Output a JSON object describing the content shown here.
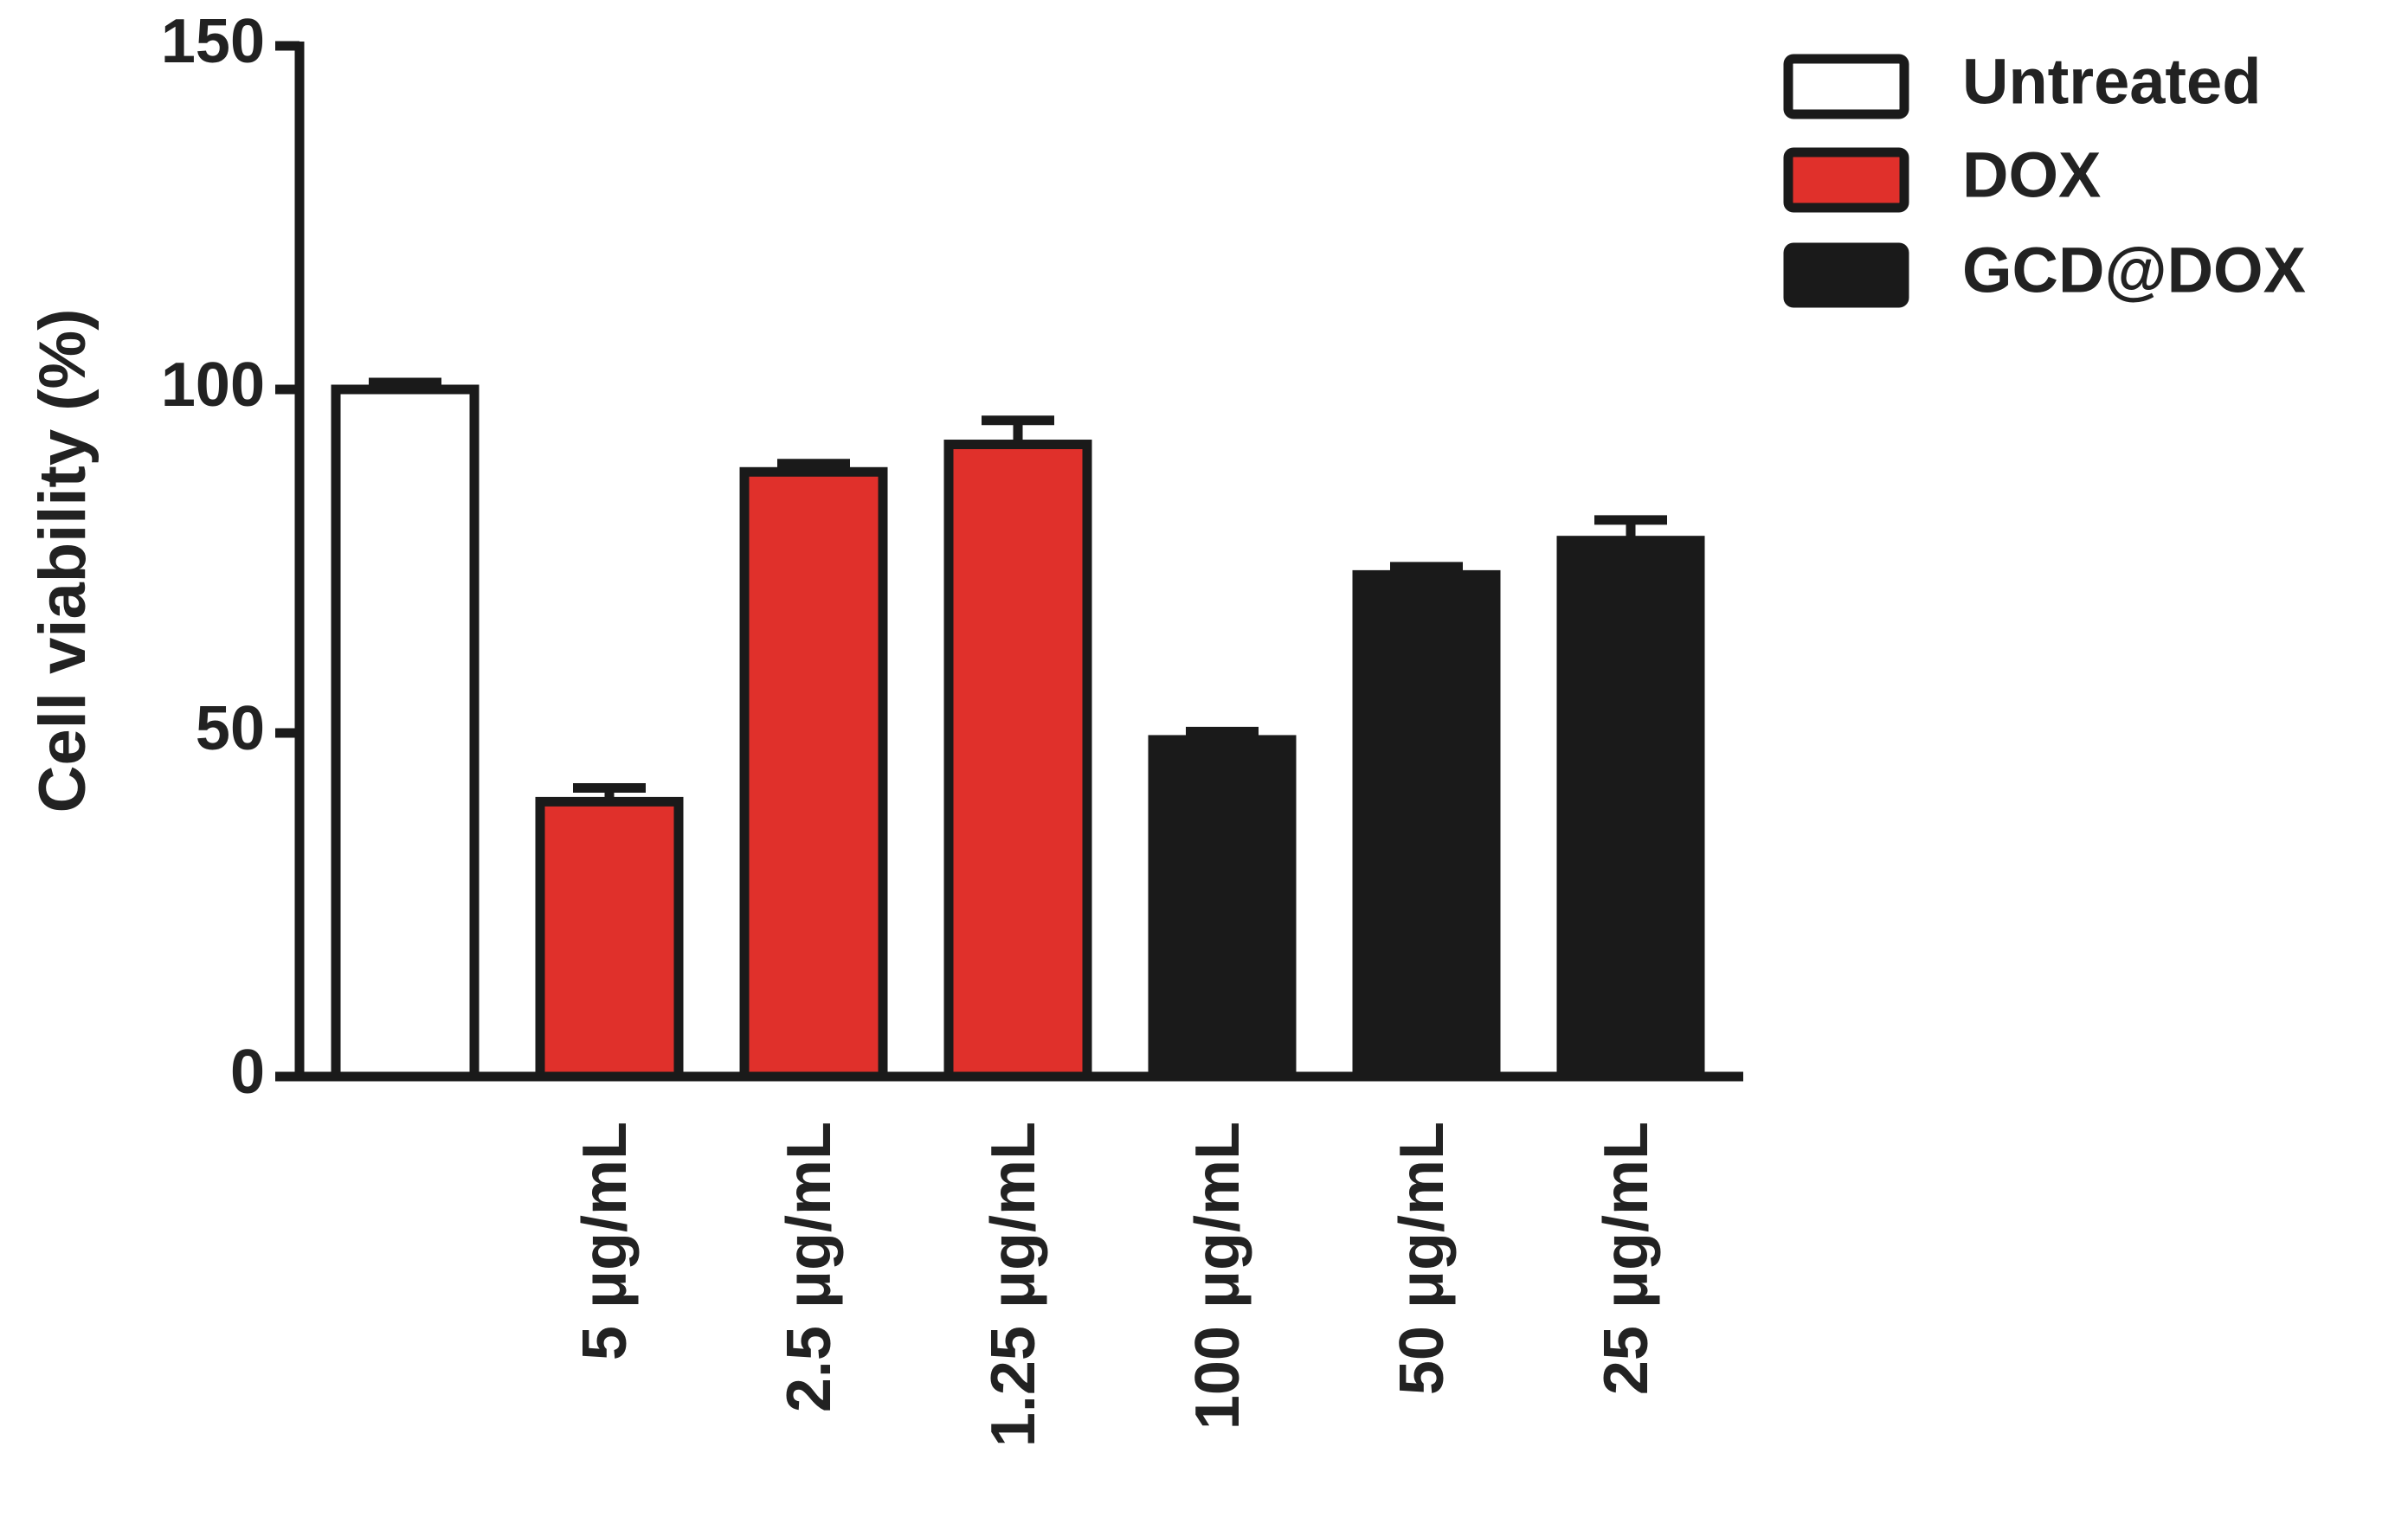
{
  "chart_data": {
    "type": "bar",
    "y_label": "Cell viability (%)",
    "categories": [
      null,
      "5 μg/mL",
      "2.5 μg/mL",
      "1.25 μg/mL",
      "100 μg/mL",
      "50 μg/mL",
      "25 μg/mL"
    ],
    "series": [
      {
        "name": "Untreated",
        "color": "#ffffff",
        "values": [
          100,
          null,
          null,
          null,
          null,
          null,
          null
        ],
        "errors": [
          1,
          null,
          null,
          null,
          null,
          null,
          null
        ]
      },
      {
        "name": "DOX",
        "color": "#e0302b",
        "values": [
          null,
          40,
          88,
          92,
          null,
          null,
          null
        ],
        "errors": [
          null,
          2,
          1.2,
          3.5,
          null,
          null,
          null
        ]
      },
      {
        "name": "GCD@DOX",
        "color": "#1a1a1a",
        "values": [
          null,
          null,
          null,
          null,
          49,
          73,
          78
        ],
        "errors": [
          null,
          null,
          null,
          null,
          1.2,
          1.2,
          3
        ]
      }
    ],
    "ylim": [
      0,
      150
    ],
    "yticks": [
      0,
      50,
      100,
      150
    ],
    "legend": "top-right"
  }
}
